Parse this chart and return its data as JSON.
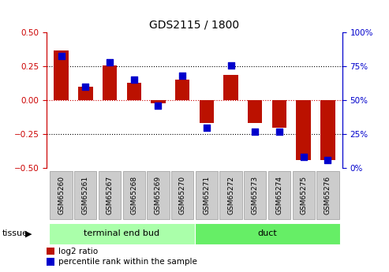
{
  "title": "GDS2115 / 1800",
  "samples": [
    "GSM65260",
    "GSM65261",
    "GSM65267",
    "GSM65268",
    "GSM65269",
    "GSM65270",
    "GSM65271",
    "GSM65272",
    "GSM65273",
    "GSM65274",
    "GSM65275",
    "GSM65276"
  ],
  "log2_ratio": [
    0.37,
    0.1,
    0.26,
    0.13,
    -0.02,
    0.15,
    -0.17,
    0.19,
    -0.17,
    -0.2,
    -0.44,
    -0.44
  ],
  "percentile_rank": [
    83,
    60,
    78,
    65,
    46,
    68,
    30,
    76,
    27,
    27,
    8,
    6
  ],
  "bar_color": "#bb1100",
  "dot_color": "#0000cc",
  "left_axis_color": "#cc0000",
  "right_axis_color": "#0000cc",
  "ylim_left": [
    -0.5,
    0.5
  ],
  "ylim_right": [
    0,
    100
  ],
  "yticks_left": [
    -0.5,
    -0.25,
    0.0,
    0.25,
    0.5
  ],
  "yticks_right": [
    0,
    25,
    50,
    75,
    100
  ],
  "group1_label": "terminal end bud",
  "group1_color": "#aaffaa",
  "group2_label": "duct",
  "group2_color": "#66ee66",
  "group1_count": 6,
  "group2_count": 6,
  "tissue_label": "tissue",
  "legend_log2": "log2 ratio",
  "legend_pct": "percentile rank within the sample",
  "bg_color": "#ffffff",
  "tickbox_color": "#cccccc",
  "tickbox_edgecolor": "#999999",
  "bar_width": 0.6,
  "dot_size": 35
}
